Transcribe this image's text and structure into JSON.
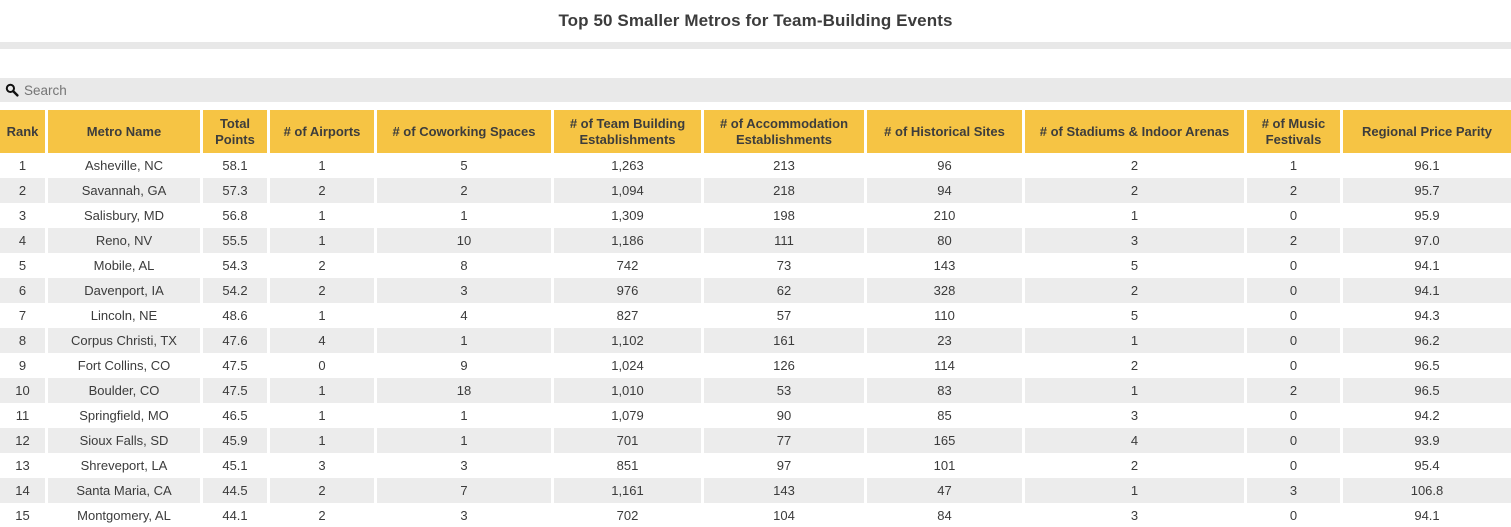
{
  "title": "Top 50 Smaller Metros for Team-Building Events",
  "search": {
    "placeholder": "Search",
    "value": "",
    "icon": "search-icon"
  },
  "colors": {
    "header_background": "#f6c444",
    "header_text": "#3d3d3c",
    "row_stripe": "#ececec",
    "search_background": "#e9e9e9",
    "divider": "#e8e8e8",
    "body_text": "#3b3b3b"
  },
  "table": {
    "columns": [
      "Rank",
      "Metro Name",
      "Total Points",
      "# of Airports",
      "# of Coworking Spaces",
      "# of Team Building Establishments",
      "# of Accommodation Establishments",
      "# of Historical Sites",
      "# of Stadiums & Indoor Arenas",
      "# of Music Festivals",
      "Regional Price Parity"
    ],
    "rows": [
      [
        "1",
        "Asheville, NC",
        "58.1",
        "1",
        "5",
        "1,263",
        "213",
        "96",
        "2",
        "1",
        "96.1"
      ],
      [
        "2",
        "Savannah, GA",
        "57.3",
        "2",
        "2",
        "1,094",
        "218",
        "94",
        "2",
        "2",
        "95.7"
      ],
      [
        "3",
        "Salisbury, MD",
        "56.8",
        "1",
        "1",
        "1,309",
        "198",
        "210",
        "1",
        "0",
        "95.9"
      ],
      [
        "4",
        "Reno, NV",
        "55.5",
        "1",
        "10",
        "1,186",
        "111",
        "80",
        "3",
        "2",
        "97.0"
      ],
      [
        "5",
        "Mobile, AL",
        "54.3",
        "2",
        "8",
        "742",
        "73",
        "143",
        "5",
        "0",
        "94.1"
      ],
      [
        "6",
        "Davenport, IA",
        "54.2",
        "2",
        "3",
        "976",
        "62",
        "328",
        "2",
        "0",
        "94.1"
      ],
      [
        "7",
        "Lincoln, NE",
        "48.6",
        "1",
        "4",
        "827",
        "57",
        "110",
        "5",
        "0",
        "94.3"
      ],
      [
        "8",
        "Corpus Christi, TX",
        "47.6",
        "4",
        "1",
        "1,102",
        "161",
        "23",
        "1",
        "0",
        "96.2"
      ],
      [
        "9",
        "Fort Collins, CO",
        "47.5",
        "0",
        "9",
        "1,024",
        "126",
        "114",
        "2",
        "0",
        "96.5"
      ],
      [
        "10",
        "Boulder, CO",
        "47.5",
        "1",
        "18",
        "1,010",
        "53",
        "83",
        "1",
        "2",
        "96.5"
      ],
      [
        "11",
        "Springfield, MO",
        "46.5",
        "1",
        "1",
        "1,079",
        "90",
        "85",
        "3",
        "0",
        "94.2"
      ],
      [
        "12",
        "Sioux Falls, SD",
        "45.9",
        "1",
        "1",
        "701",
        "77",
        "165",
        "4",
        "0",
        "93.9"
      ],
      [
        "13",
        "Shreveport, LA",
        "45.1",
        "3",
        "3",
        "851",
        "97",
        "101",
        "2",
        "0",
        "95.4"
      ],
      [
        "14",
        "Santa Maria, CA",
        "44.5",
        "2",
        "7",
        "1,161",
        "143",
        "47",
        "1",
        "3",
        "106.8"
      ],
      [
        "15",
        "Montgomery, AL",
        "44.1",
        "2",
        "3",
        "702",
        "104",
        "84",
        "3",
        "0",
        "94.1"
      ]
    ]
  }
}
